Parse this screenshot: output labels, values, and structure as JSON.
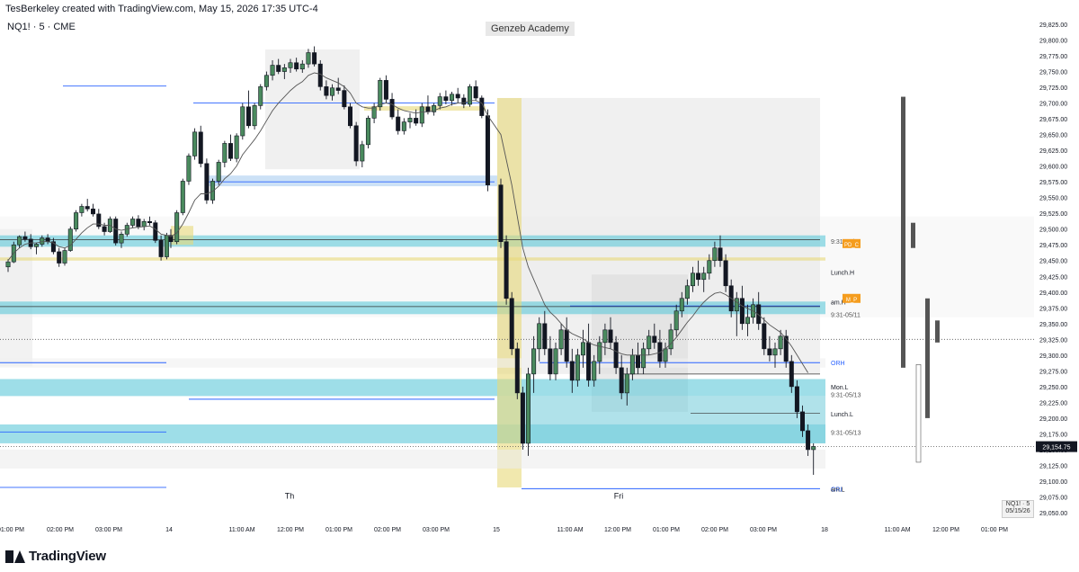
{
  "header": {
    "attribution": "TesBerkeley created with TradingView.com, May 15, 2026 17:35 UTC-4"
  },
  "legend": {
    "symbol": "NQ1! · 5 · CME",
    "watermark": "Genzeb Academy"
  },
  "footer": {
    "brand": "TradingView"
  },
  "symbol_box": {
    "line1": "NQ1! · 5",
    "line2": "05/15/26"
  },
  "colors": {
    "bull_fill": "#4a8a5e",
    "bear_fill": "#131722",
    "cyan_zone": "#5ec8d8",
    "blue_zone": "#aacdf0",
    "yellow_zone": "#e8d878",
    "gray_zone": "#d8d8d8",
    "ma_line": "#555555",
    "blue_line": "#2962ff"
  },
  "chart_data": {
    "type": "candlestick",
    "symbol": "NQ1!",
    "interval": "5",
    "exchange": "CME",
    "last_price": "29,154.75",
    "ylim": [
      29040,
      29835
    ],
    "y_ticks": [
      "29,825.00",
      "29,800.00",
      "29,775.00",
      "29,750.00",
      "29,725.00",
      "29,700.00",
      "29,675.00",
      "29,650.00",
      "29,625.00",
      "29,600.00",
      "29,575.00",
      "29,550.00",
      "29,525.00",
      "29,500.00",
      "29,475.00",
      "29,450.00",
      "29,425.00",
      "29,400.00",
      "29,375.00",
      "29,350.00",
      "29,325.00",
      "29,300.00",
      "29,275.00",
      "29,250.00",
      "29,225.00",
      "29,200.00",
      "29,175.00",
      "29,150.00",
      "29,125.00",
      "29,100.00",
      "29,075.00",
      "29,050.00"
    ],
    "x_ticks": [
      {
        "label": "01:00 PM",
        "x": 12
      },
      {
        "label": "02:00 PM",
        "x": 67
      },
      {
        "label": "03:00 PM",
        "x": 121
      },
      {
        "label": "14",
        "x": 188
      },
      {
        "label": "11:00 AM",
        "x": 269
      },
      {
        "label": "12:00 PM",
        "x": 323
      },
      {
        "label": "01:00 PM",
        "x": 377
      },
      {
        "label": "02:00 PM",
        "x": 431
      },
      {
        "label": "03:00 PM",
        "x": 485
      },
      {
        "label": "15",
        "x": 552
      },
      {
        "label": "11:00 AM",
        "x": 634
      },
      {
        "label": "12:00 PM",
        "x": 687
      },
      {
        "label": "01:00 PM",
        "x": 741
      },
      {
        "label": "02:00 PM",
        "x": 795
      },
      {
        "label": "03:00 PM",
        "x": 849
      },
      {
        "label": "18",
        "x": 917
      },
      {
        "label": "11:00 AM",
        "x": 998
      },
      {
        "label": "12:00 PM",
        "x": 1052
      },
      {
        "label": "01:00 PM",
        "x": 1106
      }
    ],
    "session_labels": [
      {
        "label": "Th",
        "x": 322,
        "price": 29072
      },
      {
        "label": "Fri",
        "x": 688,
        "price": 29072
      }
    ],
    "level_labels": [
      {
        "label": "9:31-05/11",
        "price": 29481,
        "color": "#555555"
      },
      {
        "label": "Lunch.H",
        "price": 29432,
        "color": "#131722"
      },
      {
        "label": "am.H",
        "price": 29385,
        "color": "#131722"
      },
      {
        "label": "9:31-05/11",
        "price": 29365,
        "color": "#555555"
      },
      {
        "label": "ORH",
        "price": 29288,
        "color": "#2962ff"
      },
      {
        "label": "Mon.L",
        "price": 29250,
        "color": "#131722"
      },
      {
        "label": "9:31-05/13",
        "price": 29238,
        "color": "#555555"
      },
      {
        "label": "Lunch.L",
        "price": 29207,
        "color": "#131722"
      },
      {
        "label": "9:31-05/13",
        "price": 29178,
        "color": "#555555"
      },
      {
        "label": "ORL",
        "price": 29088,
        "color": "#2962ff"
      },
      {
        "label": "am.L",
        "price": 29088,
        "color": "#131722"
      }
    ],
    "tags": [
      {
        "label": "PD_C",
        "price": 29477,
        "color": "#f59d1e"
      },
      {
        "label": "M_P",
        "price": 29390,
        "color": "#f59d1e"
      }
    ],
    "candles": [
      [
        29440,
        29452,
        29432,
        29448
      ],
      [
        29448,
        29480,
        29446,
        29475
      ],
      [
        29475,
        29490,
        29470,
        29488
      ],
      [
        29488,
        29496,
        29480,
        29484
      ],
      [
        29484,
        29492,
        29468,
        29472
      ],
      [
        29472,
        29478,
        29460,
        29476
      ],
      [
        29476,
        29490,
        29472,
        29486
      ],
      [
        29486,
        29492,
        29476,
        29480
      ],
      [
        29480,
        29486,
        29460,
        29464
      ],
      [
        29464,
        29470,
        29440,
        29446
      ],
      [
        29446,
        29470,
        29442,
        29466
      ],
      [
        29466,
        29504,
        29464,
        29500
      ],
      [
        29500,
        29530,
        29496,
        29526
      ],
      [
        29526,
        29540,
        29520,
        29536
      ],
      [
        29536,
        29548,
        29528,
        29532
      ],
      [
        29532,
        29540,
        29520,
        29524
      ],
      [
        29524,
        29532,
        29500,
        29504
      ],
      [
        29504,
        29510,
        29490,
        29496
      ],
      [
        29496,
        29520,
        29494,
        29516
      ],
      [
        29516,
        29520,
        29474,
        29478
      ],
      [
        29478,
        29496,
        29470,
        29492
      ],
      [
        29492,
        29510,
        29488,
        29506
      ],
      [
        29506,
        29520,
        29502,
        29516
      ],
      [
        29516,
        29522,
        29500,
        29504
      ],
      [
        29504,
        29516,
        29498,
        29512
      ],
      [
        29512,
        29520,
        29506,
        29510
      ],
      [
        29510,
        29514,
        29478,
        29482
      ],
      [
        29482,
        29490,
        29450,
        29456
      ],
      [
        29456,
        29494,
        29452,
        29490
      ],
      [
        29490,
        29500,
        29470,
        29480
      ],
      [
        29480,
        29530,
        29476,
        29526
      ],
      [
        29526,
        29580,
        29522,
        29576
      ],
      [
        29576,
        29620,
        29570,
        29616
      ],
      [
        29616,
        29660,
        29610,
        29654
      ],
      [
        29654,
        29664,
        29598,
        29604
      ],
      [
        29604,
        29612,
        29540,
        29546
      ],
      [
        29546,
        29580,
        29540,
        29576
      ],
      [
        29576,
        29610,
        29570,
        29606
      ],
      [
        29606,
        29640,
        29598,
        29636
      ],
      [
        29636,
        29650,
        29608,
        29612
      ],
      [
        29612,
        29652,
        29606,
        29648
      ],
      [
        29648,
        29700,
        29642,
        29694
      ],
      [
        29694,
        29720,
        29660,
        29664
      ],
      [
        29664,
        29700,
        29658,
        29696
      ],
      [
        29696,
        29730,
        29690,
        29726
      ],
      [
        29726,
        29750,
        29720,
        29744
      ],
      [
        29744,
        29768,
        29736,
        29760
      ],
      [
        29760,
        29770,
        29746,
        29750
      ],
      [
        29750,
        29762,
        29738,
        29756
      ],
      [
        29756,
        29770,
        29748,
        29764
      ],
      [
        29764,
        29772,
        29750,
        29754
      ],
      [
        29754,
        29768,
        29748,
        29762
      ],
      [
        29762,
        29786,
        29756,
        29780
      ],
      [
        29780,
        29790,
        29758,
        29762
      ],
      [
        29762,
        29768,
        29720,
        29726
      ],
      [
        29726,
        29736,
        29706,
        29712
      ],
      [
        29712,
        29730,
        29704,
        29724
      ],
      [
        29724,
        29740,
        29714,
        29720
      ],
      [
        29720,
        29728,
        29690,
        29694
      ],
      [
        29694,
        29700,
        29660,
        29664
      ],
      [
        29664,
        29670,
        29600,
        29608
      ],
      [
        29608,
        29640,
        29598,
        29634
      ],
      [
        29634,
        29680,
        29628,
        29676
      ],
      [
        29676,
        29700,
        29668,
        29694
      ],
      [
        29694,
        29740,
        29688,
        29736
      ],
      [
        29736,
        29744,
        29700,
        29706
      ],
      [
        29706,
        29716,
        29674,
        29678
      ],
      [
        29678,
        29690,
        29650,
        29656
      ],
      [
        29656,
        29676,
        29650,
        29670
      ],
      [
        29670,
        29684,
        29660,
        29676
      ],
      [
        29676,
        29690,
        29664,
        29668
      ],
      [
        29668,
        29700,
        29662,
        29694
      ],
      [
        29694,
        29712,
        29682,
        29686
      ],
      [
        29686,
        29700,
        29680,
        29696
      ],
      [
        29696,
        29716,
        29690,
        29710
      ],
      [
        29710,
        29720,
        29698,
        29704
      ],
      [
        29704,
        29718,
        29696,
        29714
      ],
      [
        29714,
        29724,
        29700,
        29708
      ],
      [
        29708,
        29714,
        29692,
        29698
      ],
      [
        29698,
        29730,
        29694,
        29726
      ],
      [
        29726,
        29736,
        29704,
        29708
      ],
      [
        29708,
        29712,
        29676,
        29680
      ],
      [
        29680,
        29690,
        29560,
        29570
      ],
      [
        29570,
        29580,
        29470,
        29480
      ],
      [
        29480,
        29490,
        29380,
        29390
      ],
      [
        29390,
        29400,
        29300,
        29310
      ],
      [
        29310,
        29320,
        29230,
        29240
      ],
      [
        29240,
        29250,
        29150,
        29160
      ],
      [
        29160,
        29280,
        29140,
        29270
      ],
      [
        29270,
        29330,
        29240,
        29310
      ],
      [
        29310,
        29360,
        29290,
        29350
      ],
      [
        29350,
        29370,
        29300,
        29310
      ],
      [
        29310,
        29330,
        29260,
        29270
      ],
      [
        29270,
        29320,
        29260,
        29310
      ],
      [
        29310,
        29350,
        29300,
        29340
      ],
      [
        29340,
        29360,
        29280,
        29290
      ],
      [
        29290,
        29310,
        29240,
        29260
      ],
      [
        29260,
        29310,
        29250,
        29300
      ],
      [
        29300,
        29340,
        29280,
        29320
      ],
      [
        29320,
        29350,
        29250,
        29260
      ],
      [
        29260,
        29300,
        29250,
        29290
      ],
      [
        29290,
        29330,
        29270,
        29320
      ],
      [
        29320,
        29350,
        29300,
        29340
      ],
      [
        29340,
        29360,
        29310,
        29320
      ],
      [
        29320,
        29330,
        29270,
        29280
      ],
      [
        29280,
        29300,
        29230,
        29240
      ],
      [
        29240,
        29280,
        29220,
        29270
      ],
      [
        29270,
        29310,
        29260,
        29300
      ],
      [
        29300,
        29320,
        29270,
        29280
      ],
      [
        29280,
        29320,
        29270,
        29310
      ],
      [
        29310,
        29340,
        29300,
        29330
      ],
      [
        29330,
        29350,
        29310,
        29320
      ],
      [
        29320,
        29340,
        29280,
        29290
      ],
      [
        29290,
        29320,
        29280,
        29310
      ],
      [
        29310,
        29350,
        29300,
        29340
      ],
      [
        29340,
        29380,
        29330,
        29370
      ],
      [
        29370,
        29400,
        29360,
        29390
      ],
      [
        29390,
        29420,
        29380,
        29410
      ],
      [
        29410,
        29440,
        29400,
        29430
      ],
      [
        29430,
        29450,
        29410,
        29420
      ],
      [
        29420,
        29440,
        29400,
        29430
      ],
      [
        29430,
        29460,
        29420,
        29450
      ],
      [
        29450,
        29480,
        29440,
        29470
      ],
      [
        29470,
        29490,
        29440,
        29450
      ],
      [
        29450,
        29460,
        29400,
        29410
      ],
      [
        29410,
        29420,
        29360,
        29370
      ],
      [
        29370,
        29400,
        29330,
        29390
      ],
      [
        29390,
        29410,
        29340,
        29350
      ],
      [
        29350,
        29380,
        29330,
        29360
      ],
      [
        29360,
        29390,
        29350,
        29380
      ],
      [
        29380,
        29400,
        29340,
        29350
      ],
      [
        29350,
        29360,
        29300,
        29310
      ],
      [
        29310,
        29330,
        29290,
        29300
      ],
      [
        29300,
        29320,
        29280,
        29310
      ],
      [
        29310,
        29340,
        29300,
        29330
      ],
      [
        29330,
        29340,
        29280,
        29290
      ],
      [
        29290,
        29300,
        29240,
        29250
      ],
      [
        29250,
        29260,
        29200,
        29210
      ],
      [
        29210,
        29220,
        29170,
        29180
      ],
      [
        29180,
        29190,
        29140,
        29150
      ],
      [
        29150,
        29160,
        29110,
        29155
      ]
    ],
    "ma_line": [
      29450,
      29462,
      29470,
      29476,
      29478,
      29478,
      29480,
      29480,
      29478,
      29472,
      29470,
      29474,
      29484,
      29494,
      29502,
      29508,
      29508,
      29506,
      29506,
      29500,
      29498,
      29500,
      29502,
      29503,
      29504,
      29505,
      29500,
      29492,
      29490,
      29488,
      29494,
      29508,
      29526,
      29546,
      29556,
      29556,
      29560,
      29568,
      29580,
      29588,
      29600,
      29618,
      29630,
      29642,
      29656,
      29672,
      29688,
      29700,
      29710,
      29720,
      29728,
      29734,
      29744,
      29748,
      29746,
      29740,
      29736,
      29732,
      29726,
      29716,
      29700,
      29694,
      29692,
      29692,
      29698,
      29700,
      29698,
      29692,
      29688,
      29686,
      29684,
      29686,
      29686,
      29688,
      29692,
      29694,
      29698,
      29700,
      29700,
      29704,
      29704,
      29700,
      29680,
      29650,
      29610,
      29570,
      29520,
      29470,
      29440,
      29420,
      29400,
      29380,
      29368,
      29360,
      29350,
      29340,
      29334,
      29330,
      29326,
      29320,
      29316,
      29314,
      29312,
      29310,
      29306,
      29302,
      29300,
      29300,
      29300,
      29300,
      29300,
      29302,
      29304,
      29310,
      29318,
      29328,
      29340,
      29352,
      29362,
      29374,
      29384,
      29392,
      29398,
      29400,
      29396,
      29390,
      29384,
      29378,
      29374,
      29370,
      29364,
      29356,
      29348,
      29342,
      29336,
      29326,
      29314,
      29300,
      29286,
      29272
    ]
  }
}
